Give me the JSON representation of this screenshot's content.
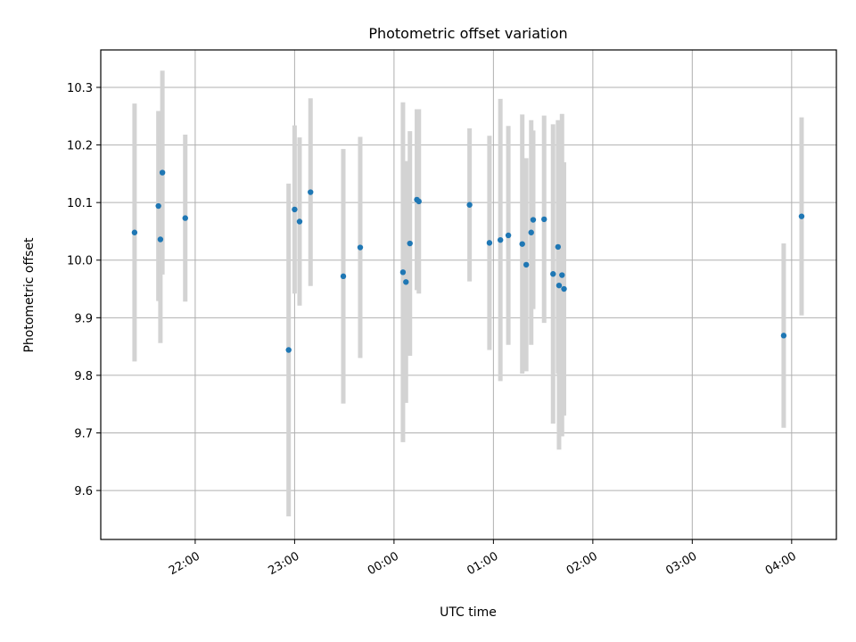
{
  "chart_data": {
    "type": "scatter",
    "title": "Photometric offset variation",
    "xlabel": "UTC time",
    "ylabel": "Photometric offset",
    "x_unit": "hour-of-night",
    "xlim": [
      21.05,
      28.45
    ],
    "ylim": [
      9.515,
      10.365
    ],
    "grid": true,
    "colors": {
      "point": "#1f77b4",
      "errorbar": "#d3d3d3",
      "grid": "#b0b0b0"
    },
    "x_ticks": [
      {
        "value": 22,
        "label": "22:00"
      },
      {
        "value": 23,
        "label": "23:00"
      },
      {
        "value": 24,
        "label": "00:00"
      },
      {
        "value": 25,
        "label": "01:00"
      },
      {
        "value": 26,
        "label": "02:00"
      },
      {
        "value": 27,
        "label": "03:00"
      },
      {
        "value": 28,
        "label": "04:00"
      }
    ],
    "y_ticks": [
      {
        "value": 9.6,
        "label": "9.6"
      },
      {
        "value": 9.7,
        "label": "9.7"
      },
      {
        "value": 9.8,
        "label": "9.8"
      },
      {
        "value": 9.9,
        "label": "9.9"
      },
      {
        "value": 10.0,
        "label": "10.0"
      },
      {
        "value": 10.1,
        "label": "10.1"
      },
      {
        "value": 10.2,
        "label": "10.2"
      },
      {
        "value": 10.3,
        "label": "10.3"
      }
    ],
    "points": [
      {
        "x": 21.39,
        "y": 10.048,
        "yerr": 0.224
      },
      {
        "x": 21.63,
        "y": 10.094,
        "yerr": 0.165
      },
      {
        "x": 21.65,
        "y": 10.036,
        "yerr": 0.18
      },
      {
        "x": 21.67,
        "y": 10.152,
        "yerr": 0.177
      },
      {
        "x": 21.9,
        "y": 10.073,
        "yerr": 0.145
      },
      {
        "x": 22.94,
        "y": 9.844,
        "yerr": 0.289
      },
      {
        "x": 23.0,
        "y": 10.088,
        "yerr": 0.146
      },
      {
        "x": 23.05,
        "y": 10.067,
        "yerr": 0.146
      },
      {
        "x": 23.16,
        "y": 10.118,
        "yerr": 0.163
      },
      {
        "x": 23.49,
        "y": 9.972,
        "yerr": 0.221
      },
      {
        "x": 23.66,
        "y": 10.022,
        "yerr": 0.192
      },
      {
        "x": 24.09,
        "y": 9.979,
        "yerr": 0.295
      },
      {
        "x": 24.12,
        "y": 9.962,
        "yerr": 0.21
      },
      {
        "x": 24.16,
        "y": 10.029,
        "yerr": 0.195
      },
      {
        "x": 24.23,
        "y": 10.105,
        "yerr": 0.157
      },
      {
        "x": 24.25,
        "y": 10.102,
        "yerr": 0.16
      },
      {
        "x": 24.76,
        "y": 10.096,
        "yerr": 0.133
      },
      {
        "x": 24.96,
        "y": 10.03,
        "yerr": 0.186
      },
      {
        "x": 25.07,
        "y": 10.035,
        "yerr": 0.245
      },
      {
        "x": 25.15,
        "y": 10.043,
        "yerr": 0.19
      },
      {
        "x": 25.29,
        "y": 10.028,
        "yerr": 0.225
      },
      {
        "x": 25.33,
        "y": 9.992,
        "yerr": 0.185
      },
      {
        "x": 25.38,
        "y": 10.048,
        "yerr": 0.195
      },
      {
        "x": 25.4,
        "y": 10.07,
        "yerr": 0.155
      },
      {
        "x": 25.51,
        "y": 10.071,
        "yerr": 0.18
      },
      {
        "x": 25.6,
        "y": 9.976,
        "yerr": 0.26
      },
      {
        "x": 25.65,
        "y": 10.023,
        "yerr": 0.22
      },
      {
        "x": 25.66,
        "y": 9.956,
        "yerr": 0.285
      },
      {
        "x": 25.69,
        "y": 9.974,
        "yerr": 0.28
      },
      {
        "x": 25.71,
        "y": 9.95,
        "yerr": 0.22
      },
      {
        "x": 27.92,
        "y": 9.869,
        "yerr": 0.16
      },
      {
        "x": 28.1,
        "y": 10.076,
        "yerr": 0.172
      }
    ]
  }
}
